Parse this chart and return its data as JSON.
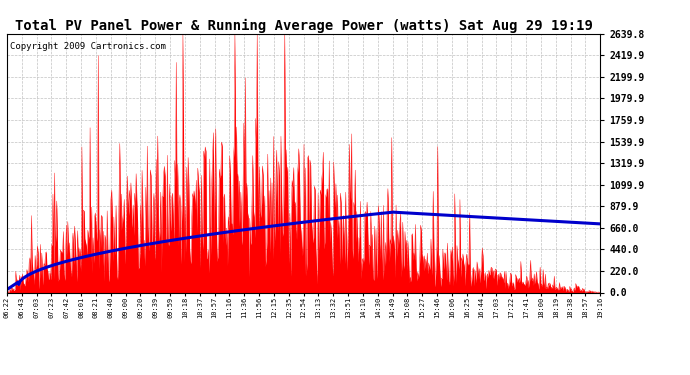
{
  "title": "Total PV Panel Power & Running Average Power (watts) Sat Aug 29 19:19",
  "copyright": "Copyright 2009 Cartronics.com",
  "y_ticks": [
    0.0,
    220.0,
    440.0,
    660.0,
    879.9,
    1099.9,
    1319.9,
    1539.9,
    1759.9,
    1979.9,
    2199.9,
    2419.9,
    2639.8
  ],
  "x_labels": [
    "06:22",
    "06:43",
    "07:03",
    "07:23",
    "07:42",
    "08:01",
    "08:21",
    "08:40",
    "09:00",
    "09:20",
    "09:39",
    "09:59",
    "10:18",
    "10:37",
    "10:57",
    "11:16",
    "11:36",
    "11:56",
    "12:15",
    "12:35",
    "12:54",
    "13:13",
    "13:32",
    "13:51",
    "14:10",
    "14:30",
    "14:49",
    "15:08",
    "15:27",
    "15:46",
    "16:06",
    "16:25",
    "16:44",
    "17:03",
    "17:22",
    "17:41",
    "18:00",
    "18:19",
    "18:38",
    "18:57",
    "19:16"
  ],
  "background_color": "#ffffff",
  "fill_color": "#ff0000",
  "line_color": "#0000cc",
  "title_fontsize": 10,
  "copyright_fontsize": 6.5,
  "grid_color": "#bbbbbb",
  "ymax": 2639.8,
  "ymin": 0.0
}
